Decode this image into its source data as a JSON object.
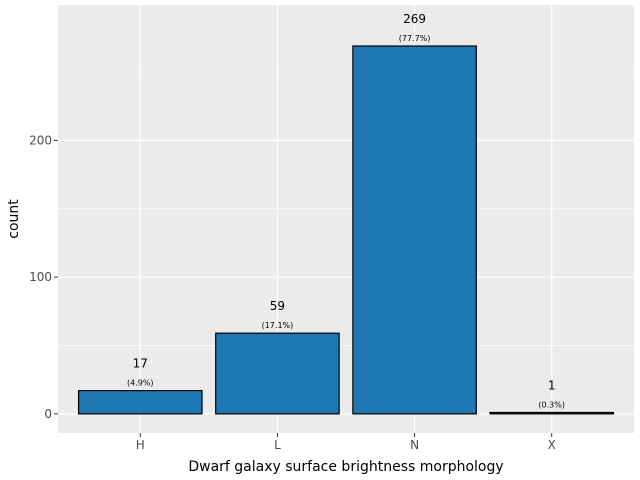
{
  "chart_data": {
    "type": "bar",
    "title": "",
    "xlabel": "Dwarf galaxy surface brightness morphology",
    "ylabel": "count",
    "categories": [
      "H",
      "L",
      "N",
      "X"
    ],
    "values": [
      17,
      59,
      269,
      1
    ],
    "count_labels": [
      "17",
      "59",
      "269",
      "1"
    ],
    "percent_labels": [
      "(4.9%)",
      "(17.1%)",
      "(77.7%)",
      "(0.3%)"
    ],
    "ylim": [
      -14,
      299
    ],
    "yticks": [
      0,
      100,
      200
    ],
    "ytick_labels": [
      "0",
      "100",
      "200"
    ],
    "grid": true,
    "legend": "none",
    "colors": {
      "bar_fill": "#1f77b4",
      "bar_stroke": "#000000",
      "panel_bg": "#ebebeb",
      "grid": "#ffffff"
    }
  }
}
